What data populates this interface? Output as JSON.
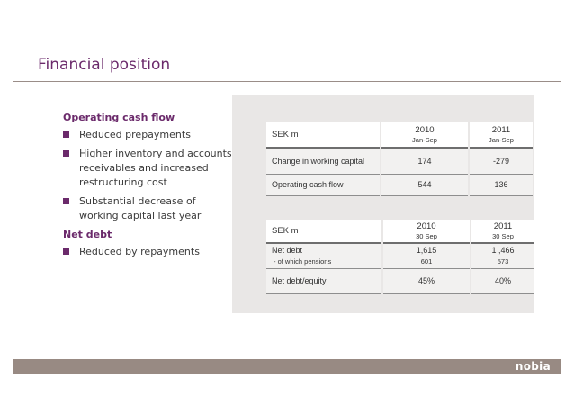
{
  "slide": {
    "title": "Financial position"
  },
  "left": {
    "operating_heading": "Operating cash flow",
    "operating_bullets": [
      "Reduced prepayments",
      "Higher inventory and accounts receivables and increased restructuring cost",
      "Substantial decrease of working capital last year"
    ],
    "netdebt_heading": "Net debt",
    "netdebt_bullets": [
      "Reduced by repayments"
    ]
  },
  "table1": {
    "header": {
      "label": "SEK m",
      "col1_year": "2010",
      "col1_sub": "Jan-Sep",
      "col2_year": "2011",
      "col2_sub": "Jan-Sep"
    },
    "rows": [
      {
        "label": "Change in working capital",
        "v1": "174",
        "v2": "-279"
      },
      {
        "label": "Operating cash flow",
        "v1": "544",
        "v2": "136"
      }
    ]
  },
  "table2": {
    "header": {
      "label": "SEK m",
      "col1_year": "2010",
      "col1_sub": "30 Sep",
      "col2_year": "2011",
      "col2_sub": "30 Sep"
    },
    "rows": [
      {
        "label": "Net debt",
        "v1": "1,615",
        "v2": "1 ,466"
      },
      {
        "label": "- of which pensions",
        "v1": "601",
        "v2": "573"
      },
      {
        "label": "Net debt/equity",
        "v1": "45%",
        "v2": "40%"
      }
    ]
  },
  "footer": {
    "logo": "nobia"
  },
  "colors": {
    "accent": "#6b2a6b",
    "footer": "#988a83",
    "panel": "#e9e7e6"
  }
}
